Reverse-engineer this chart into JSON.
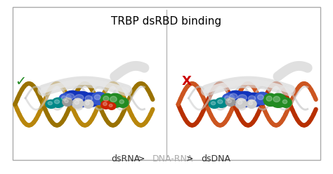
{
  "title": "TRBP dsRBD binding",
  "title_fontsize": 11,
  "title_color": "#000000",
  "background_color": "#ffffff",
  "border_color": "#aaaaaa",
  "checkmark_text": "✓",
  "checkmark_color": "#228B22",
  "xmark_text": "X",
  "xmark_color": "#cc0000",
  "bottom_label_parts": [
    {
      "text": "dsRNA",
      "color": "#333333",
      "fontsize": 9
    },
    {
      "text": "  >  ",
      "color": "#333333",
      "fontsize": 9
    },
    {
      "text": "DNA-RNA",
      "color": "#aaaaaa",
      "fontsize": 9
    },
    {
      "text": "  >  ",
      "color": "#333333",
      "fontsize": 9
    },
    {
      "text": "dsDNA",
      "color": "#333333",
      "fontsize": 9
    }
  ],
  "left_helix_color1": "#b8860b",
  "left_helix_color2": "#9a7200",
  "right_helix_color1": "#b83000",
  "right_helix_color2": "#cc5520",
  "helix_lw": 4.5,
  "gray_helix_color1": "#d8d8d8",
  "gray_helix_color2": "#bbbbbb",
  "molecule_blue": "#1133bb",
  "molecule_blue2": "#3355cc",
  "molecule_green": "#228B22",
  "molecule_teal": "#008888",
  "molecule_red": "#cc2200",
  "molecule_white": "#cccccc",
  "molecule_gray": "#999999",
  "fig_width": 4.74,
  "fig_height": 2.48,
  "dpi": 100
}
